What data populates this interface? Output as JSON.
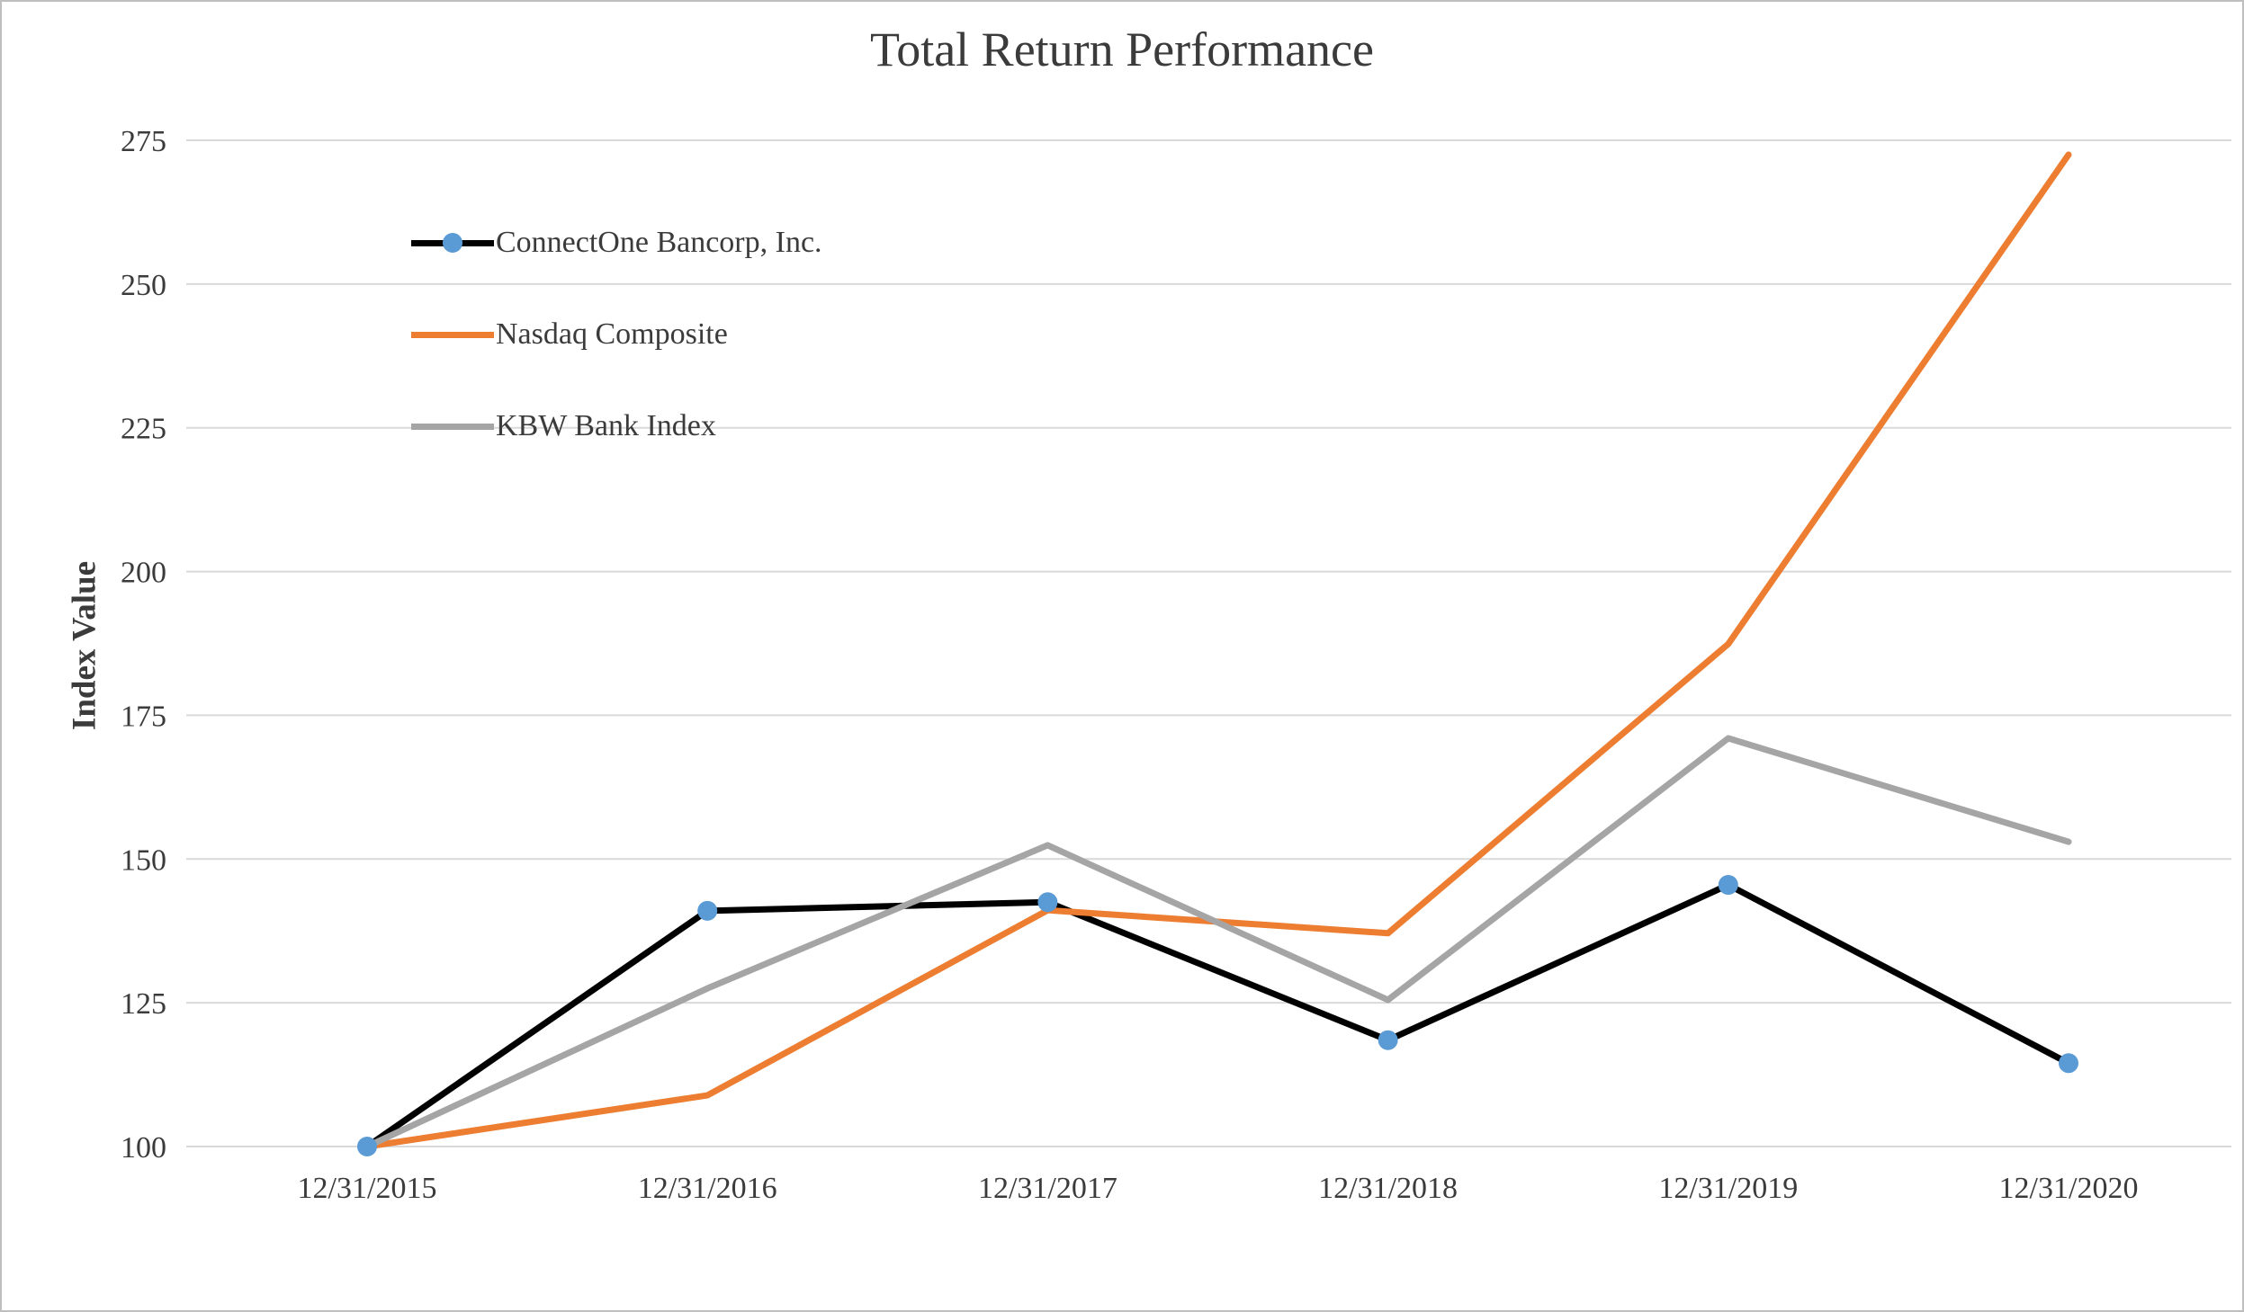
{
  "chart_data": {
    "type": "line",
    "title": "Total Return Performance",
    "xlabel": "",
    "ylabel": "Index Value",
    "categories": [
      "12/31/2015",
      "12/31/2016",
      "12/31/2017",
      "12/31/2018",
      "12/31/2019",
      "12/31/2020"
    ],
    "series": [
      {
        "name": "ConnectOne Bancorp, Inc.",
        "color": "#000000",
        "marker": {
          "shape": "circle",
          "color": "#5b9bd5"
        },
        "values": [
          100,
          141,
          142.5,
          118.5,
          145.5,
          114.5
        ]
      },
      {
        "name": "Nasdaq Composite",
        "color": "#ed7d31",
        "marker": null,
        "values": [
          100,
          108.9,
          141.1,
          137.1,
          187.4,
          272.5
        ]
      },
      {
        "name": "KBW Bank Index",
        "color": "#a5a5a5",
        "marker": null,
        "values": [
          100,
          127.5,
          152.4,
          125.5,
          171,
          153
        ]
      }
    ],
    "ylim": [
      100,
      275
    ],
    "ytick_step": 25,
    "grid": true,
    "gridline_color": "#d9d9d9",
    "tick_label_color": "#3b3b3b",
    "legend_position": "upper-left-inside"
  }
}
